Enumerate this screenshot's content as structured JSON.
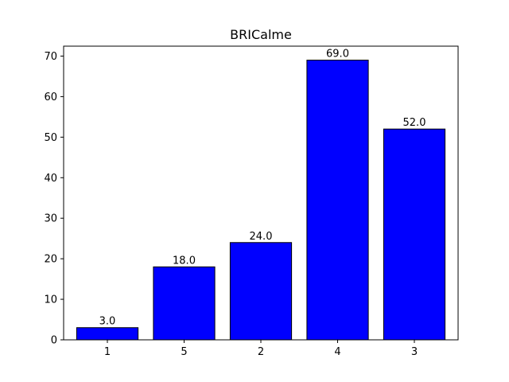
{
  "chart_data": {
    "type": "bar",
    "title": "BRICalme",
    "xlabel": "",
    "ylabel": "",
    "categories": [
      "1",
      "5",
      "2",
      "4",
      "3"
    ],
    "values": [
      3.0,
      18.0,
      24.0,
      69.0,
      52.0
    ],
    "value_labels": [
      "3.0",
      "18.0",
      "24.0",
      "69.0",
      "52.0"
    ],
    "ylim": [
      0,
      72.45
    ],
    "yticks": [
      0,
      10,
      20,
      30,
      40,
      50,
      60,
      70
    ],
    "ytick_labels": [
      "0",
      "10",
      "20",
      "30",
      "40",
      "50",
      "60",
      "70"
    ],
    "grid": false,
    "legend": "none",
    "bar_color": "#0000ff",
    "edge_color": "#000000"
  }
}
